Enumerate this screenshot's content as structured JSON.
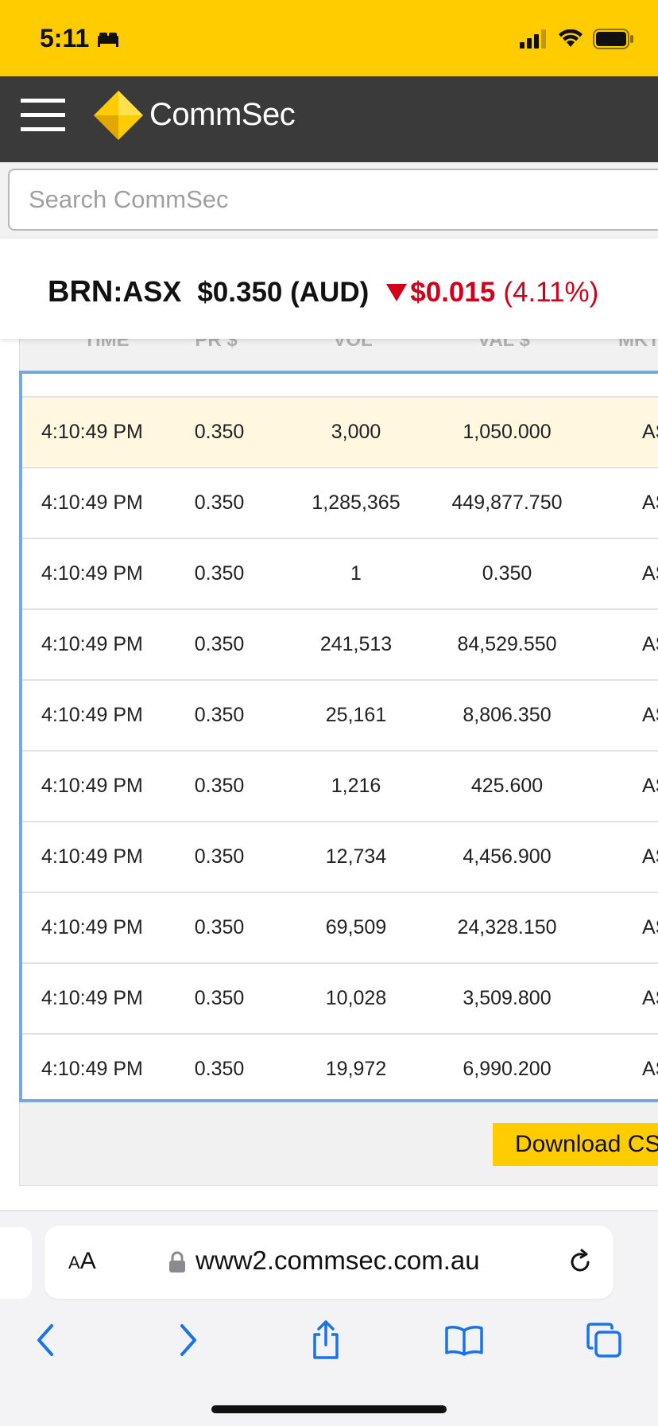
{
  "status_bar": {
    "time": "5:11",
    "background": "#ffcc00"
  },
  "header": {
    "brand": "CommSec",
    "background": "#3a3a3a",
    "accent": "#ffcc00"
  },
  "search": {
    "placeholder": "Search CommSec",
    "value": ""
  },
  "quote": {
    "code": "BRN",
    "exchange": ":ASX",
    "price": "$0.350 (AUD)",
    "change": "$0.015",
    "change_pct": "(4.11%)",
    "direction": "down",
    "negative_color": "#d0021b"
  },
  "table": {
    "columns": [
      "TIME",
      "PR $",
      "VOL",
      "VAL $",
      "MKT"
    ],
    "rows": [
      {
        "time": "4:10:49 PM",
        "price": "0.350",
        "vol": "3,000",
        "val": "1,050.000",
        "mkt": "AS"
      },
      {
        "time": "4:10:49 PM",
        "price": "0.350",
        "vol": "1,285,365",
        "val": "449,877.750",
        "mkt": "AS"
      },
      {
        "time": "4:10:49 PM",
        "price": "0.350",
        "vol": "1",
        "val": "0.350",
        "mkt": "AS"
      },
      {
        "time": "4:10:49 PM",
        "price": "0.350",
        "vol": "241,513",
        "val": "84,529.550",
        "mkt": "AS"
      },
      {
        "time": "4:10:49 PM",
        "price": "0.350",
        "vol": "25,161",
        "val": "8,806.350",
        "mkt": "AS"
      },
      {
        "time": "4:10:49 PM",
        "price": "0.350",
        "vol": "1,216",
        "val": "425.600",
        "mkt": "AS"
      },
      {
        "time": "4:10:49 PM",
        "price": "0.350",
        "vol": "12,734",
        "val": "4,456.900",
        "mkt": "AS"
      },
      {
        "time": "4:10:49 PM",
        "price": "0.350",
        "vol": "69,509",
        "val": "24,328.150",
        "mkt": "AS"
      },
      {
        "time": "4:10:49 PM",
        "price": "0.350",
        "vol": "10,028",
        "val": "3,509.800",
        "mkt": "AS"
      },
      {
        "time": "4:10:49 PM",
        "price": "0.350",
        "vol": "19,972",
        "val": "6,990.200",
        "mkt": "AS"
      }
    ],
    "highlight_color": "#fff7e0",
    "border_color": "#6fa9e6"
  },
  "download_button": {
    "label": "Download CS"
  },
  "browser": {
    "text_size_label_big": "A",
    "text_size_label_small": "A",
    "url": "www2.commsec.com.au"
  },
  "icons": [
    "menu-icon",
    "commsec-logo",
    "signal-icon",
    "wifi-icon",
    "battery-icon",
    "lock-icon",
    "reload-icon",
    "back-icon",
    "forward-icon",
    "share-icon",
    "bookmarks-icon",
    "tabs-icon"
  ]
}
